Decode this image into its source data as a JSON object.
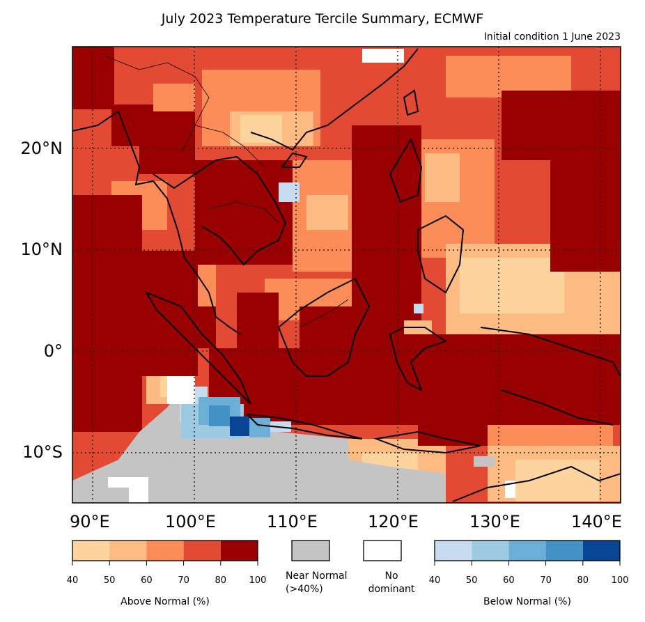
{
  "title": "July 2023 Temperature Tercile Summary, ECMWF",
  "subtitle": "Initial condition 1 June 2023",
  "map": {
    "lon_range": [
      87,
      141
    ],
    "lat_range": [
      -15,
      30
    ],
    "lat_labels": [
      "20°N",
      "10°N",
      "0°",
      "10°S"
    ],
    "lon_labels": [
      "90°E",
      "100°E",
      "110°E",
      "120°E",
      "130°E",
      "140°E"
    ],
    "gridlines": "dotted",
    "dominant_category": "Above Normal",
    "ocean_dominant_range": "60-100",
    "near_normal_region": "Indian Ocean south of Sumatra and Java",
    "below_normal_region": "Sunda Strait / southwest of Java (up to 80-100)"
  },
  "legend": {
    "above_normal": {
      "label": "Above Normal (%)",
      "ticks": [
        "40",
        "50",
        "60",
        "70",
        "80",
        "100"
      ],
      "colors": [
        "#fdd49e",
        "#fdbb84",
        "#fc8d59",
        "#e34a33",
        "#990000"
      ]
    },
    "near_normal": {
      "label": "Near Normal\n(>40%)",
      "color": "#c4c4c4"
    },
    "no_dominant": {
      "label": "No\ndominant",
      "color": "#ffffff"
    },
    "below_normal": {
      "label": "Below Normal (%)",
      "ticks": [
        "40",
        "50",
        "60",
        "70",
        "80",
        "100"
      ],
      "colors": [
        "#c6dbef",
        "#9ecae1",
        "#6baed6",
        "#4292c6",
        "#084594"
      ]
    }
  }
}
